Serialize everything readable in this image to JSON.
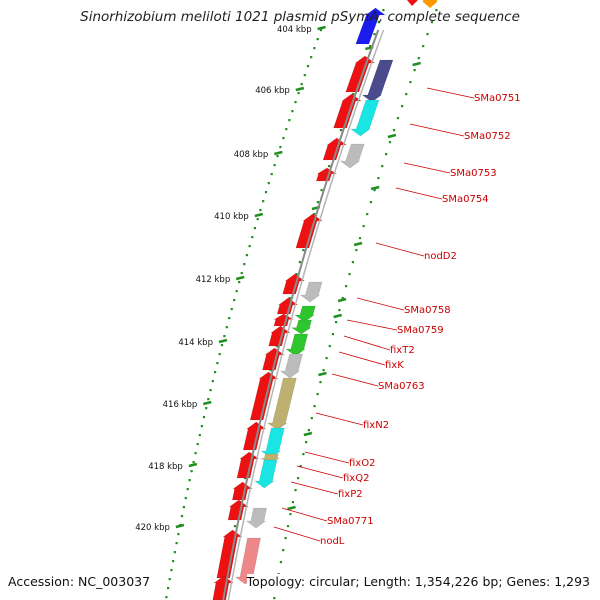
{
  "title": "Sinorhizobium meliloti 1021 plasmid pSymA, complete sequence",
  "footer": {
    "accession": "Accession: NC_003037",
    "topology": "Topology: circular; Length: 1,354,226 bp; Genes: 1,293"
  },
  "colors": {
    "backbone": "#8a8a8a",
    "ticks": "#1f8f1f",
    "gene_red": "#ee1111",
    "gene_gray": "#bcbcbc",
    "gene_cyan": "#19e5e5",
    "gene_green": "#2ec52e",
    "gene_olive": "#bdb070",
    "gene_navy": "#4a4a8c",
    "gene_blue": "#1b1bee",
    "gene_orange": "#ff9900",
    "gene_pink": "#ee8888",
    "label_red": "#cc0000"
  },
  "scale": {
    "tick_labels": [
      "404 kbp",
      "406 kbp",
      "408 kbp",
      "410 kbp",
      "412 kbp",
      "414 kbp",
      "416 kbp",
      "418 kbp",
      "420 kbp"
    ]
  },
  "genes": [
    {
      "label": "SMa0751"
    },
    {
      "label": "SMa0752"
    },
    {
      "label": "SMa0753"
    },
    {
      "label": "SMa0754"
    },
    {
      "label": "nodD2"
    },
    {
      "label": "SMa0758"
    },
    {
      "label": "SMa0759"
    },
    {
      "label": "fixT2"
    },
    {
      "label": "fixK"
    },
    {
      "label": "SMa0763"
    },
    {
      "label": "fixN2"
    },
    {
      "label": "fixO2"
    },
    {
      "label": "fixQ2"
    },
    {
      "label": "fixP2"
    },
    {
      "label": "SMa0771"
    },
    {
      "label": "nodL"
    }
  ]
}
